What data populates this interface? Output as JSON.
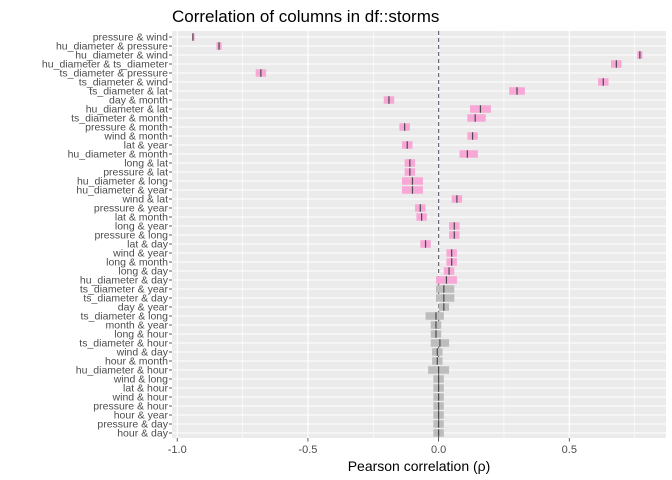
{
  "chart_data": {
    "type": "forest",
    "title": "Correlation of columns in df::storms",
    "xlabel": "Pearson correlation (ρ)",
    "ylabel": "",
    "xlim": [
      -1.02,
      0.87
    ],
    "xticks": [
      -1.0,
      -0.5,
      0.0,
      0.5
    ],
    "xtick_labels": [
      "-1.0",
      "-0.5",
      "0.0",
      "0.5"
    ],
    "reference_line": 0,
    "colors": {
      "panel_bg": "#ebebeb",
      "grid": "#ffffff",
      "significant": "#f7a8d6",
      "not_significant": "#bdbdbd",
      "estimate_tick": "#4a4a4a",
      "reference_line": "#6a6a7a"
    },
    "rows": [
      {
        "label": "pressure & wind",
        "r": -0.94,
        "lo": -0.943,
        "hi": -0.937,
        "sig": true
      },
      {
        "label": "hu_diameter & pressure",
        "r": -0.84,
        "lo": -0.85,
        "hi": -0.83,
        "sig": true
      },
      {
        "label": "hu_diameter & wind",
        "r": 0.77,
        "lo": 0.76,
        "hi": 0.78,
        "sig": true
      },
      {
        "label": "hu_diameter & ts_diameter",
        "r": 0.68,
        "lo": 0.66,
        "hi": 0.7,
        "sig": true
      },
      {
        "label": "ts_diameter & pressure",
        "r": -0.68,
        "lo": -0.7,
        "hi": -0.66,
        "sig": true
      },
      {
        "label": "ts_diameter & wind",
        "r": 0.63,
        "lo": 0.61,
        "hi": 0.65,
        "sig": true
      },
      {
        "label": "ts_diameter & lat",
        "r": 0.3,
        "lo": 0.27,
        "hi": 0.33,
        "sig": true
      },
      {
        "label": "day & month",
        "r": -0.19,
        "lo": -0.21,
        "hi": -0.17,
        "sig": true
      },
      {
        "label": "hu_diameter & lat",
        "r": 0.16,
        "lo": 0.12,
        "hi": 0.2,
        "sig": true
      },
      {
        "label": "ts_diameter & month",
        "r": 0.14,
        "lo": 0.11,
        "hi": 0.18,
        "sig": true
      },
      {
        "label": "pressure & month",
        "r": -0.13,
        "lo": -0.15,
        "hi": -0.11,
        "sig": true
      },
      {
        "label": "wind & month",
        "r": 0.13,
        "lo": 0.11,
        "hi": 0.15,
        "sig": true
      },
      {
        "label": "lat & year",
        "r": -0.12,
        "lo": -0.14,
        "hi": -0.1,
        "sig": true
      },
      {
        "label": "hu_diameter & month",
        "r": 0.11,
        "lo": 0.08,
        "hi": 0.15,
        "sig": true
      },
      {
        "label": "long & lat",
        "r": -0.11,
        "lo": -0.13,
        "hi": -0.09,
        "sig": true
      },
      {
        "label": "pressure & lat",
        "r": -0.11,
        "lo": -0.13,
        "hi": -0.09,
        "sig": true
      },
      {
        "label": "hu_diameter & long",
        "r": -0.1,
        "lo": -0.14,
        "hi": -0.06,
        "sig": true
      },
      {
        "label": "hu_diameter & year",
        "r": -0.1,
        "lo": -0.14,
        "hi": -0.06,
        "sig": true
      },
      {
        "label": "wind & lat",
        "r": 0.07,
        "lo": 0.05,
        "hi": 0.09,
        "sig": true
      },
      {
        "label": "pressure & year",
        "r": -0.07,
        "lo": -0.09,
        "hi": -0.05,
        "sig": true
      },
      {
        "label": "lat & month",
        "r": -0.065,
        "lo": -0.085,
        "hi": -0.045,
        "sig": true
      },
      {
        "label": "long & year",
        "r": 0.06,
        "lo": 0.04,
        "hi": 0.08,
        "sig": true
      },
      {
        "label": "pressure & long",
        "r": 0.06,
        "lo": 0.04,
        "hi": 0.08,
        "sig": true
      },
      {
        "label": "lat & day",
        "r": -0.05,
        "lo": -0.07,
        "hi": -0.03,
        "sig": true
      },
      {
        "label": "wind & year",
        "r": 0.05,
        "lo": 0.03,
        "hi": 0.07,
        "sig": true
      },
      {
        "label": "long & month",
        "r": 0.05,
        "lo": 0.03,
        "hi": 0.07,
        "sig": true
      },
      {
        "label": "long & day",
        "r": 0.04,
        "lo": 0.02,
        "hi": 0.06,
        "sig": true
      },
      {
        "label": "hu_diameter & day",
        "r": 0.03,
        "lo": -0.01,
        "hi": 0.07,
        "sig": true
      },
      {
        "label": "ts_diameter & year",
        "r": 0.02,
        "lo": -0.01,
        "hi": 0.06,
        "sig": false
      },
      {
        "label": "ts_diameter & day",
        "r": 0.02,
        "lo": -0.01,
        "hi": 0.06,
        "sig": false
      },
      {
        "label": "day & year",
        "r": 0.02,
        "lo": 0.0,
        "hi": 0.04,
        "sig": false
      },
      {
        "label": "ts_diameter & long",
        "r": -0.01,
        "lo": -0.05,
        "hi": 0.02,
        "sig": false
      },
      {
        "label": "month & year",
        "r": -0.01,
        "lo": -0.03,
        "hi": 0.01,
        "sig": false
      },
      {
        "label": "long & hour",
        "r": -0.01,
        "lo": -0.03,
        "hi": 0.01,
        "sig": false
      },
      {
        "label": "ts_diameter & hour",
        "r": 0.005,
        "lo": -0.03,
        "hi": 0.04,
        "sig": false
      },
      {
        "label": "wind & day",
        "r": -0.005,
        "lo": -0.025,
        "hi": 0.015,
        "sig": false
      },
      {
        "label": "hour & month",
        "r": -0.005,
        "lo": -0.025,
        "hi": 0.015,
        "sig": false
      },
      {
        "label": "hu_diameter & hour",
        "r": 0.0,
        "lo": -0.04,
        "hi": 0.04,
        "sig": false
      },
      {
        "label": "wind & long",
        "r": 0.0,
        "lo": -0.02,
        "hi": 0.02,
        "sig": false
      },
      {
        "label": "lat & hour",
        "r": 0.0,
        "lo": -0.02,
        "hi": 0.02,
        "sig": false
      },
      {
        "label": "wind & hour",
        "r": 0.0,
        "lo": -0.02,
        "hi": 0.02,
        "sig": false
      },
      {
        "label": "pressure & hour",
        "r": 0.0,
        "lo": -0.02,
        "hi": 0.02,
        "sig": false
      },
      {
        "label": "hour & year",
        "r": 0.0,
        "lo": -0.02,
        "hi": 0.02,
        "sig": false
      },
      {
        "label": "pressure & day",
        "r": 0.0,
        "lo": -0.02,
        "hi": 0.02,
        "sig": false
      },
      {
        "label": "hour & day",
        "r": 0.0,
        "lo": -0.02,
        "hi": 0.02,
        "sig": false
      }
    ]
  }
}
